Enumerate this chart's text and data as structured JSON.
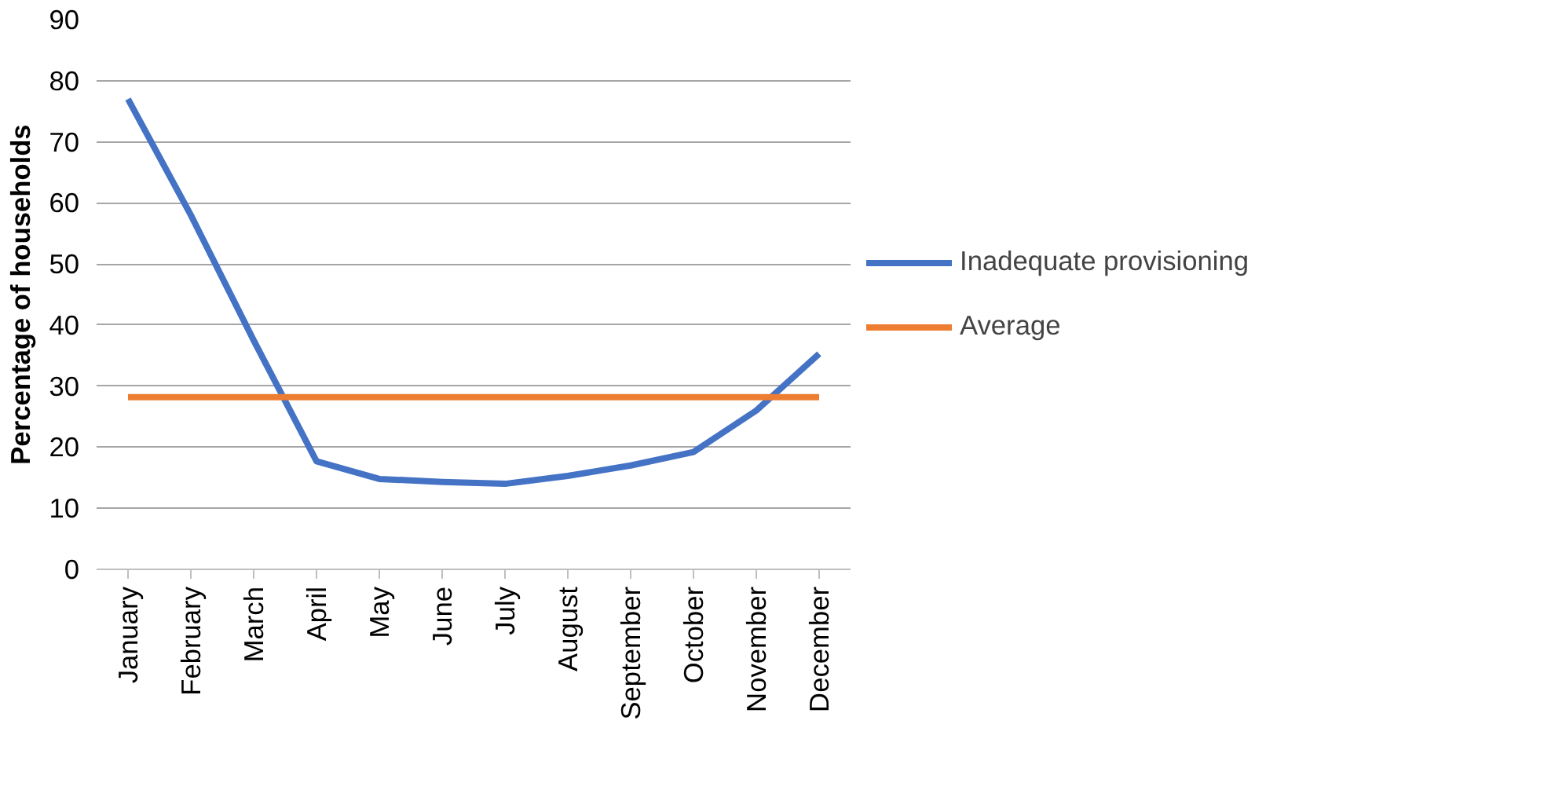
{
  "chart_data": {
    "type": "line",
    "ylabel": "Percentage of households",
    "categories": [
      "January",
      "February",
      "March",
      "April",
      "May",
      "June",
      "July",
      "August",
      "September",
      "October",
      "November",
      "December"
    ],
    "series": [
      {
        "name": "Inadequate provisioning",
        "color": "#4472c4",
        "values": [
          77,
          58,
          37.5,
          17.7,
          14.8,
          14.3,
          14,
          15.3,
          17,
          19.2,
          26,
          35.3
        ]
      },
      {
        "name": "Average",
        "color": "#ed7d31",
        "values": [
          28.2,
          28.2,
          28.2,
          28.2,
          28.2,
          28.2,
          28.2,
          28.2,
          28.2,
          28.2,
          28.2,
          28.2
        ]
      }
    ],
    "ylim": [
      0,
      90
    ],
    "yticks": [
      0,
      10,
      20,
      30,
      40,
      50,
      60,
      70,
      80,
      90
    ],
    "grid": "y",
    "legend": "right",
    "marker": "none",
    "line_style": "solid"
  }
}
